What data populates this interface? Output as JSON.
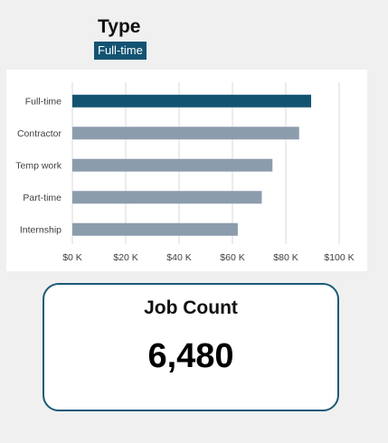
{
  "slicer": {
    "title": "Type",
    "selected": "Full-time"
  },
  "chart_data": {
    "type": "bar",
    "orientation": "horizontal",
    "categories": [
      "Full-time",
      "Contractor",
      "Temp work",
      "Part-time",
      "Internship"
    ],
    "values": [
      89500,
      85000,
      75000,
      71000,
      62000
    ],
    "highlight": "Full-time",
    "xticks": [
      "$0 K",
      "$20 K",
      "$40 K",
      "$60 K",
      "$80 K",
      "$100 K"
    ],
    "xlim": [
      0,
      100000
    ],
    "grid": true,
    "colors": {
      "highlight": "#135372",
      "default": "#8b9cad"
    }
  },
  "kpi": {
    "title": "Job Count",
    "value": "6,480"
  }
}
